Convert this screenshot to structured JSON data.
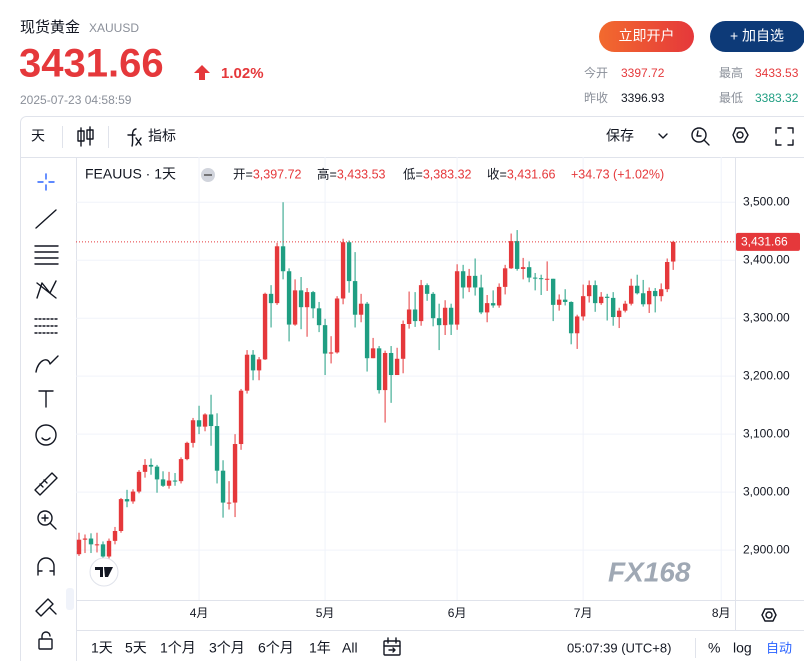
{
  "header": {
    "name": "现货黄金",
    "symbol": "XAUUSD",
    "price": "3431.66",
    "change_pct": "1.02%",
    "time": "2025-07-23 04:58:59",
    "buttons": [
      "立即开户",
      "+ 加自选"
    ],
    "stats": [
      {
        "label": "今开",
        "value": "3397.72"
      },
      {
        "label": "最高",
        "value": "3433.53"
      },
      {
        "label": "昨收",
        "value": "3396.93"
      },
      {
        "label": "最低",
        "value": "3383.32"
      }
    ]
  },
  "toolbar": {
    "interval": "天",
    "indicators": "指标",
    "save": "保存"
  },
  "chart_data": {
    "type": "candlestick",
    "title": "FEAUUS · 1天",
    "legend": [
      {
        "key": "开=",
        "value": "3,397.72"
      },
      {
        "key": "高=",
        "value": "3,433.53"
      },
      {
        "key": "低=",
        "value": "3,383.32"
      },
      {
        "key": "收=",
        "value": "3,431.66"
      }
    ],
    "change": "+34.73 (+1.02%)",
    "up_color": "#e5383b",
    "down_color": "#1f9e82",
    "open": [
      2893,
      2918,
      2920,
      2910,
      2910,
      2889,
      2916,
      2933,
      2988,
      2984,
      3001,
      3035,
      3047,
      3044,
      3022,
      3011,
      3020,
      3019,
      3057,
      3085,
      3124,
      3113,
      3134,
      3114,
      3037,
      2982,
      2982,
      3083,
      3175,
      3237,
      3210,
      3229,
      3342,
      3326,
      3424,
      3381,
      3289,
      3348,
      3319,
      3345,
      3317,
      3288,
      3239,
      3241,
      3334,
      3431,
      3364,
      3306,
      3325,
      3231,
      3248,
      3176,
      3240,
      3202,
      3230,
      3290,
      3315,
      3295,
      3357,
      3342,
      3300,
      3288,
      3318,
      3289,
      3381,
      3353,
      3373,
      3353,
      3310,
      3326,
      3322,
      3354,
      3386,
      3433,
      3385,
      3388,
      3370,
      3369,
      3368,
      3368,
      3323,
      3332,
      3328,
      3274,
      3303,
      3338,
      3357,
      3326,
      3337,
      3335,
      3302,
      3313,
      3325,
      3356,
      3343,
      3324,
      3347,
      3338,
      3350,
      3397.72
    ],
    "high": [
      2930,
      2927,
      2929,
      2930,
      2915,
      2920,
      2940,
      2990,
      3004,
      3005,
      3038,
      3057,
      3058,
      3047,
      3036,
      3035,
      3033,
      3060,
      3087,
      3128,
      3149,
      3136,
      3168,
      3136,
      3055,
      3019,
      3100,
      3178,
      3245,
      3245,
      3233,
      3344,
      3357,
      3430,
      3500,
      3386,
      3367,
      3371,
      3352,
      3347,
      3328,
      3299,
      3269,
      3338,
      3437,
      3434,
      3414,
      3342,
      3328,
      3266,
      3252,
      3244,
      3252,
      3249,
      3296,
      3346,
      3345,
      3366,
      3360,
      3345,
      3325,
      3331,
      3325,
      3393,
      3392,
      3385,
      3403,
      3375,
      3340,
      3348,
      3360,
      3392,
      3446,
      3452,
      3404,
      3398,
      3378,
      3375,
      3398,
      3368,
      3341,
      3350,
      3329,
      3306,
      3358,
      3365,
      3365,
      3345,
      3342,
      3345,
      3318,
      3330,
      3368,
      3375,
      3366,
      3353,
      3352,
      3360,
      3403,
      3433.53
    ],
    "low": [
      2890,
      2895,
      2895,
      2896,
      2880,
      2880,
      2910,
      2930,
      2974,
      2980,
      2998,
      3025,
      3030,
      2999,
      3009,
      3006,
      3011,
      3015,
      3055,
      3077,
      3100,
      3105,
      3080,
      3015,
      2956,
      2970,
      2957,
      3073,
      3170,
      3193,
      3193,
      3228,
      3284,
      3323,
      3367,
      3260,
      3287,
      3281,
      3268,
      3300,
      3276,
      3202,
      3222,
      3239,
      3324,
      3344,
      3284,
      3293,
      3208,
      3231,
      3170,
      3120,
      3154,
      3206,
      3205,
      3282,
      3285,
      3287,
      3330,
      3286,
      3245,
      3271,
      3271,
      3280,
      3334,
      3345,
      3339,
      3307,
      3293,
      3318,
      3318,
      3341,
      3385,
      3382,
      3367,
      3362,
      3348,
      3340,
      3347,
      3295,
      3313,
      3322,
      3255,
      3247,
      3296,
      3327,
      3311,
      3323,
      3296,
      3287,
      3283,
      3310,
      3322,
      3341,
      3320,
      3309,
      3310,
      3329,
      3345,
      3383.32
    ],
    "close": [
      2918,
      2920,
      2910,
      2910,
      2889,
      2916,
      2933,
      2988,
      2984,
      3001,
      3035,
      3047,
      3044,
      3022,
      3011,
      3020,
      3019,
      3057,
      3085,
      3124,
      3113,
      3134,
      3114,
      3037,
      2982,
      2982,
      3083,
      3175,
      3237,
      3210,
      3229,
      3342,
      3326,
      3424,
      3381,
      3289,
      3348,
      3319,
      3345,
      3317,
      3288,
      3239,
      3241,
      3334,
      3431,
      3364,
      3306,
      3325,
      3231,
      3248,
      3176,
      3240,
      3202,
      3230,
      3290,
      3315,
      3295,
      3357,
      3342,
      3300,
      3288,
      3318,
      3289,
      3381,
      3353,
      3373,
      3353,
      3310,
      3326,
      3322,
      3354,
      3386,
      3433,
      3385,
      3388,
      3370,
      3369,
      3368,
      3368,
      3323,
      3332,
      3328,
      3274,
      3303,
      3338,
      3357,
      3326,
      3337,
      3335,
      3302,
      3313,
      3325,
      3356,
      3343,
      3324,
      3347,
      3338,
      3350,
      3396.93,
      3431.66
    ],
    "last_price": {
      "value": 3431.66,
      "label": "3,431.66"
    },
    "xlim": [
      -0.5,
      109.3
    ],
    "xticks": [
      {
        "value": 20,
        "label": "4月"
      },
      {
        "value": 41,
        "label": "5月"
      },
      {
        "value": 63,
        "label": "6月"
      },
      {
        "value": 84,
        "label": "7月"
      },
      {
        "value": 107,
        "label": "8月"
      }
    ],
    "ylim": [
      2814,
      3578
    ],
    "yticks": [
      {
        "value": 2900,
        "label": "2,900.00"
      },
      {
        "value": 3000,
        "label": "3,000.00"
      },
      {
        "value": 3100,
        "label": "3,100.00"
      },
      {
        "value": 3200,
        "label": "3,200.00"
      },
      {
        "value": 3300,
        "label": "3,300.00"
      },
      {
        "value": 3400,
        "label": "3,400.00"
      },
      {
        "value": 3500,
        "label": "3,500.00"
      }
    ],
    "grid": true
  },
  "watermark": "FX168",
  "footer": {
    "ranges": [
      "1天",
      "5天",
      "1个月",
      "3个月",
      "6个月",
      "1年",
      "All"
    ],
    "clock": "05:07:39 (UTC+8)",
    "percent": "%",
    "log": "log",
    "auto": "自动"
  }
}
